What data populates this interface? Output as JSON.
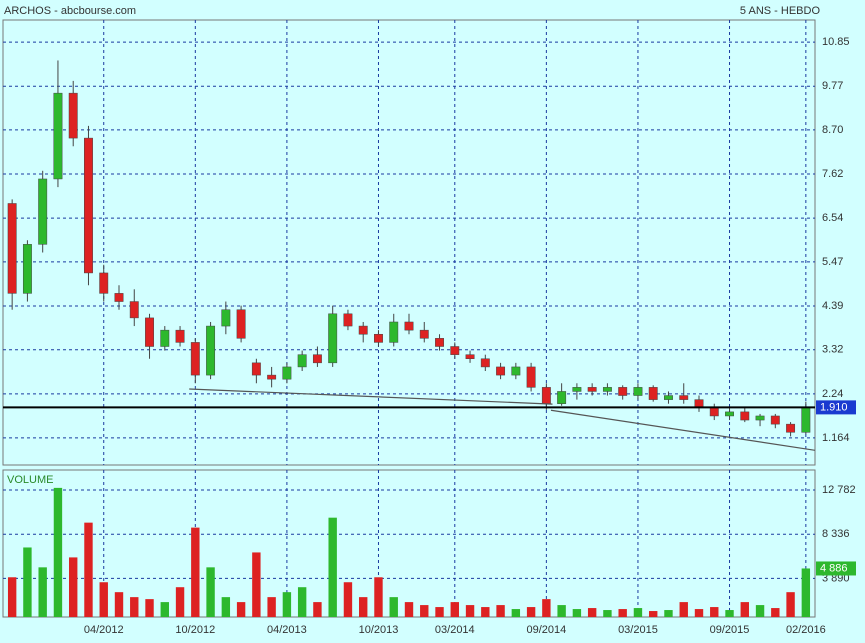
{
  "chart_data": {
    "type": "candlestick",
    "title": "ARCHOS - abcbourse.com",
    "subtitle": "5 ANS - HEBDO",
    "up_color": "#2db82d",
    "down_color": "#dd2222",
    "grid": true,
    "x": [
      9,
      10,
      11,
      12,
      13,
      14,
      15,
      16,
      17,
      18,
      19,
      20,
      21,
      22,
      23,
      24,
      25,
      26,
      27,
      28,
      29,
      30,
      31,
      32,
      33,
      34,
      35,
      36,
      37,
      38,
      39,
      40,
      41,
      42,
      43,
      44,
      45,
      46,
      47,
      48,
      49,
      50,
      51,
      52,
      53,
      54,
      55,
      56,
      57,
      58,
      59,
      60,
      61
    ],
    "open": [
      6.9,
      4.7,
      5.9,
      7.5,
      9.6,
      8.5,
      5.2,
      4.7,
      4.5,
      4.1,
      3.4,
      3.8,
      3.5,
      2.7,
      3.9,
      4.3,
      3.0,
      2.7,
      2.6,
      2.9,
      3.2,
      3.0,
      4.2,
      3.9,
      3.7,
      3.5,
      4.0,
      3.8,
      3.6,
      3.4,
      3.2,
      3.1,
      2.9,
      2.7,
      2.9,
      2.4,
      2.0,
      2.3,
      2.4,
      2.3,
      2.4,
      2.2,
      2.4,
      2.1,
      2.2,
      2.1,
      1.9,
      1.7,
      1.8,
      1.6,
      1.7,
      1.5,
      1.3
    ],
    "high": [
      7.0,
      6.0,
      7.7,
      10.4,
      9.9,
      8.8,
      5.4,
      4.9,
      4.8,
      4.2,
      3.9,
      3.9,
      3.6,
      4.0,
      4.5,
      4.4,
      3.1,
      2.9,
      3.0,
      3.3,
      3.4,
      4.4,
      4.3,
      4.0,
      3.8,
      4.2,
      4.2,
      4.0,
      3.7,
      3.5,
      3.3,
      3.2,
      3.0,
      3.0,
      3.0,
      2.5,
      2.5,
      2.5,
      2.5,
      2.5,
      2.45,
      2.5,
      2.45,
      2.3,
      2.5,
      2.2,
      2.0,
      1.9,
      1.9,
      1.75,
      1.75,
      1.55,
      2.05
    ],
    "low": [
      4.3,
      4.5,
      5.7,
      7.3,
      8.3,
      4.9,
      4.5,
      4.3,
      3.9,
      3.1,
      3.3,
      3.4,
      2.5,
      2.6,
      3.7,
      3.5,
      2.5,
      2.4,
      2.5,
      2.8,
      2.9,
      2.9,
      3.8,
      3.5,
      3.4,
      3.4,
      3.7,
      3.5,
      3.3,
      3.1,
      3.0,
      2.8,
      2.6,
      2.6,
      2.3,
      1.85,
      1.95,
      2.1,
      2.2,
      2.2,
      2.1,
      2.1,
      2.05,
      2.0,
      2.0,
      1.8,
      1.6,
      1.6,
      1.55,
      1.45,
      1.4,
      1.2,
      1.25
    ],
    "close": [
      4.7,
      5.9,
      7.5,
      9.6,
      8.5,
      5.2,
      4.7,
      4.5,
      4.1,
      3.4,
      3.8,
      3.5,
      2.7,
      3.9,
      4.3,
      3.6,
      2.7,
      2.6,
      2.9,
      3.2,
      3.0,
      4.2,
      3.9,
      3.7,
      3.5,
      4.0,
      3.8,
      3.6,
      3.4,
      3.2,
      3.1,
      2.9,
      2.7,
      2.9,
      2.4,
      2.0,
      2.3,
      2.4,
      2.3,
      2.4,
      2.2,
      2.4,
      2.1,
      2.2,
      2.1,
      1.9,
      1.7,
      1.8,
      1.6,
      1.7,
      1.5,
      1.3,
      1.91
    ],
    "xlim": [
      8.4,
      61.6
    ],
    "xticks": [
      {
        "value": 15,
        "label": "04/2012"
      },
      {
        "value": 21,
        "label": "10/2012"
      },
      {
        "value": 27,
        "label": "04/2013"
      },
      {
        "value": 33,
        "label": "10/2013"
      },
      {
        "value": 38,
        "label": "03/2014"
      },
      {
        "value": 44,
        "label": "09/2014"
      },
      {
        "value": 50,
        "label": "03/2015"
      },
      {
        "value": 56,
        "label": "09/2015"
      },
      {
        "value": 61,
        "label": "02/2016"
      }
    ],
    "ylim": [
      0.5,
      11.39
    ],
    "yticks": [
      1.164,
      2.24,
      3.32,
      4.39,
      5.47,
      6.54,
      7.62,
      {
        "value": 8.7,
        "label": "8.70"
      },
      9.77,
      10.85
    ],
    "last_price": {
      "value": 1.91,
      "label": "1.910"
    },
    "trend_lines": [
      {
        "x": [
          20.6,
          44.4
        ],
        "y": [
          2.36,
          1.99
        ]
      },
      {
        "x": [
          44.3,
          61.6
        ],
        "y": [
          1.84,
          0.86
        ]
      }
    ],
    "volume": {
      "label": "VOLUME",
      "values": [
        4000,
        7000,
        5000,
        13000,
        6000,
        9500,
        3500,
        2500,
        2000,
        1800,
        1500,
        3000,
        9000,
        5000,
        2000,
        1500,
        6500,
        2000,
        2500,
        3000,
        1500,
        10000,
        3500,
        2000,
        4000,
        2000,
        1500,
        1200,
        1000,
        1500,
        1200,
        1000,
        1200,
        800,
        1000,
        1800,
        1200,
        800,
        900,
        700,
        800,
        900,
        600,
        700,
        1500,
        800,
        1000,
        700,
        1500,
        1200,
        900,
        2500,
        4886
      ],
      "ylim": [
        0,
        14800
      ],
      "yticks": [
        {
          "value": 3890,
          "label": "3 890"
        },
        {
          "value": 8336,
          "label": "8 336"
        },
        {
          "value": 12782,
          "label": "12 782"
        }
      ],
      "last": {
        "value": 4886,
        "label": "4 886"
      }
    }
  }
}
